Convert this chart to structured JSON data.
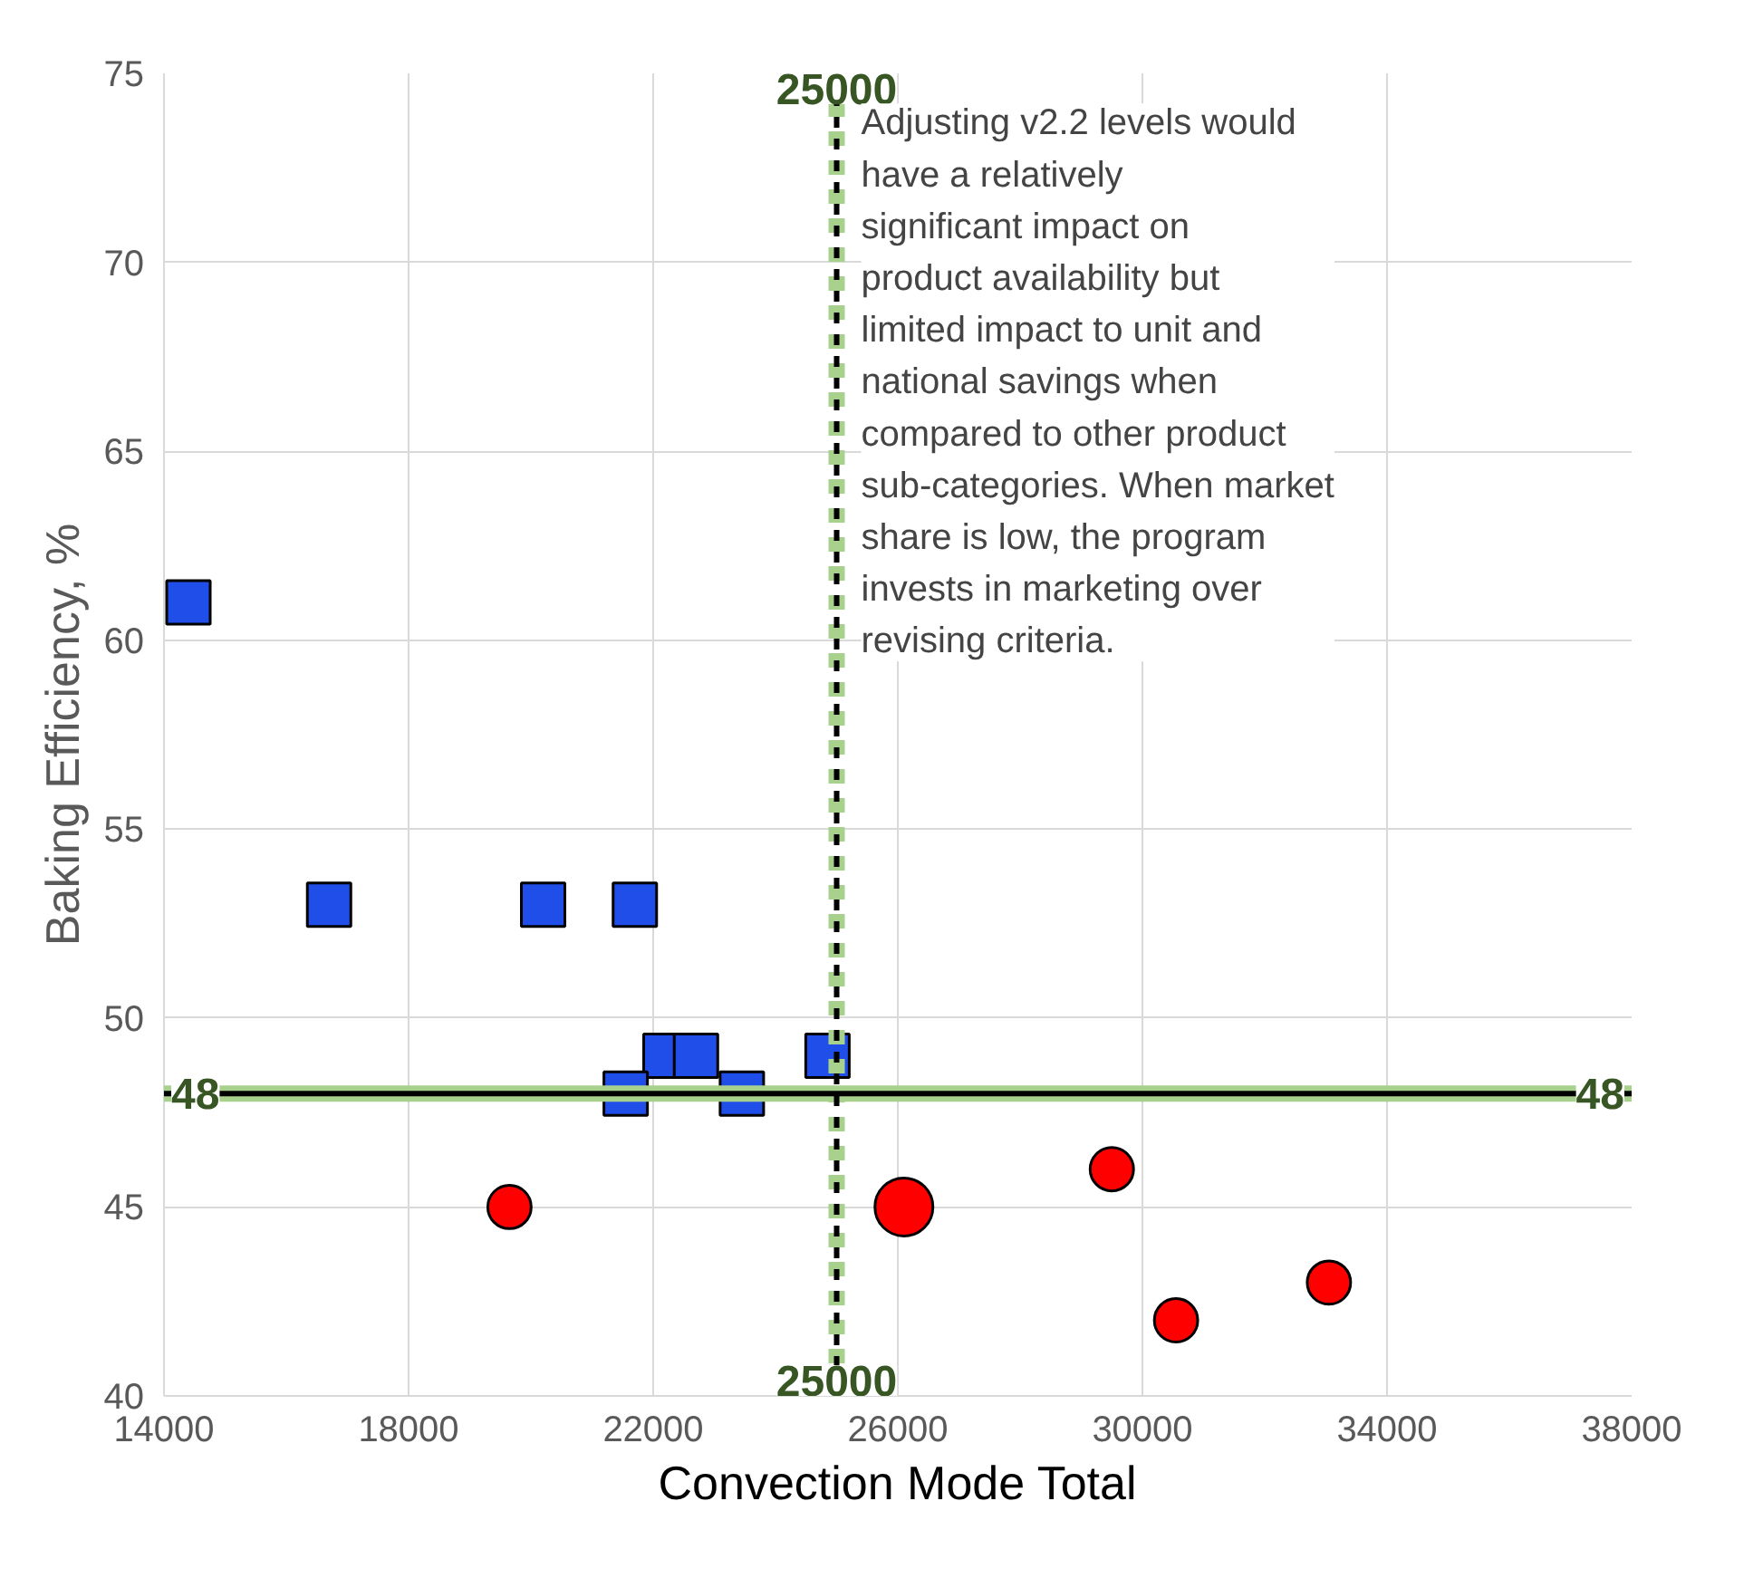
{
  "chart_data": {
    "type": "scatter",
    "xlabel": "Convection Mode Total",
    "ylabel": "Baking Efficiency, %",
    "xlim": [
      14000,
      38000
    ],
    "ylim": [
      40,
      75
    ],
    "xticks": [
      14000,
      18000,
      22000,
      26000,
      30000,
      34000,
      38000
    ],
    "yticks": [
      40,
      45,
      50,
      55,
      60,
      65,
      70,
      75
    ],
    "grid": true,
    "series": [
      {
        "color": "#1f4fe8",
        "marker": "square",
        "x": [
          14400,
          16700,
          20200,
          21700,
          22200,
          22700,
          21550,
          23450,
          24850
        ],
        "values": [
          61,
          53,
          53,
          53,
          49,
          49,
          48,
          48,
          49
        ]
      },
      {
        "type": "bubble",
        "color": "#ff0000",
        "marker": "circle",
        "x": [
          19650,
          26100,
          29500,
          30550,
          33050
        ],
        "values": [
          45,
          45,
          46,
          42,
          43
        ],
        "sizes": [
          0.56,
          1,
          0.56,
          0.56,
          0.56
        ]
      }
    ],
    "ref_lines": [
      {
        "axis": "x",
        "value": 25000,
        "color": "#a9d18e",
        "line_style": "dashed"
      },
      {
        "axis": "y",
        "value": 48,
        "color": "#a9d18e",
        "line_style": "solid"
      },
      {
        "axis": "x",
        "value": 25000,
        "label": "25000",
        "color": "#000000",
        "line_style": "dashed"
      },
      {
        "axis": "y",
        "value": 48,
        "label": "48",
        "color": "#000000",
        "line_style": "solid"
      }
    ],
    "annotations": [
      "Adjusting v2.2 levels would have a relatively significant impact on product availability but limited impact to unit and national savings when compared to other product sub-categories. When market share is low, the program invests in marketing over revising criteria."
    ]
  }
}
